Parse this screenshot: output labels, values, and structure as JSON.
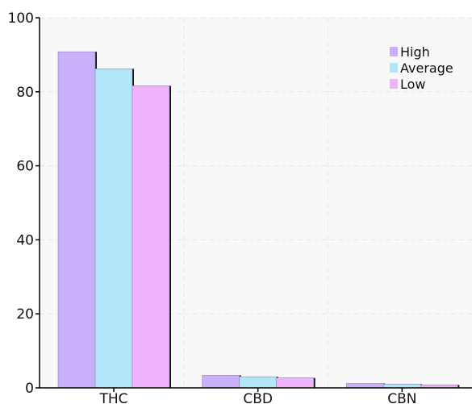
{
  "chart_data": {
    "type": "bar",
    "categories": [
      "THC",
      "CBD",
      "CBN"
    ],
    "series": [
      {
        "name": "High",
        "values": [
          90.8,
          3.4,
          1.2
        ],
        "color": "#c8b0fa"
      },
      {
        "name": "Average",
        "values": [
          86.2,
          3.0,
          1.0
        ],
        "color": "#b2e6fa"
      },
      {
        "name": "Low",
        "values": [
          81.6,
          2.7,
          0.8
        ],
        "color": "#f0b2fa"
      }
    ],
    "ylim": [
      0,
      100
    ],
    "yticks": [
      0,
      20,
      40,
      60,
      80,
      100
    ],
    "grid": true,
    "legend_position": "top-right",
    "colors": {
      "plot_background": "#f8f8f8",
      "grid": "#e6e6e6",
      "axis": "#000000",
      "bar_shadow": "#111111",
      "bar_outline": "#8f82b8"
    }
  }
}
